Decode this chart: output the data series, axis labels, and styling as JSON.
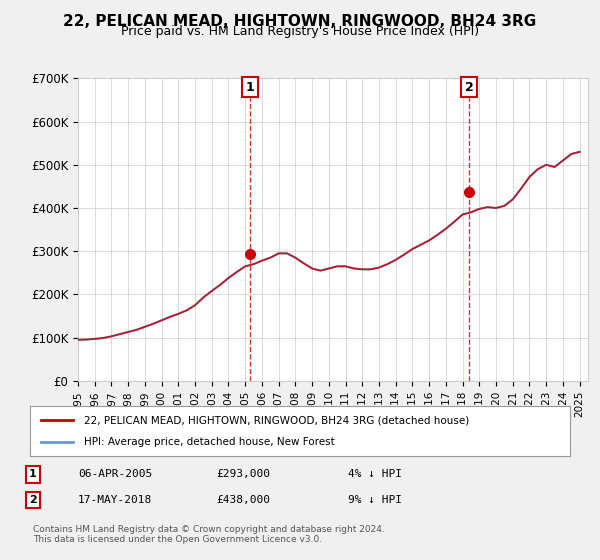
{
  "title": "22, PELICAN MEAD, HIGHTOWN, RINGWOOD, BH24 3RG",
  "subtitle": "Price paid vs. HM Land Registry's House Price Index (HPI)",
  "legend_line1": "22, PELICAN MEAD, HIGHTOWN, RINGWOOD, BH24 3RG (detached house)",
  "legend_line2": "HPI: Average price, detached house, New Forest",
  "footnote": "Contains HM Land Registry data © Crown copyright and database right 2024.\nThis data is licensed under the Open Government Licence v3.0.",
  "table_rows": [
    [
      "1",
      "06-APR-2005",
      "£293,000",
      "4% ↓ HPI"
    ],
    [
      "2",
      "17-MAY-2018",
      "£438,000",
      "9% ↓ HPI"
    ]
  ],
  "ylabel_ticks": [
    "£0",
    "£100K",
    "£200K",
    "£300K",
    "£400K",
    "£500K",
    "£600K",
    "£700K"
  ],
  "ylim": [
    0,
    700000
  ],
  "xlim_start": 1995.0,
  "xlim_end": 2025.5,
  "vline1_x": 2005.27,
  "vline2_x": 2018.38,
  "marker1_price": 293000,
  "marker2_price": 438000,
  "red_color": "#cc0000",
  "blue_color": "#6699cc",
  "vline_color": "#cc0000",
  "bg_color": "#f0f0f0",
  "plot_bg": "#ffffff",
  "hpi_years": [
    1995,
    1995.5,
    1996,
    1996.5,
    1997,
    1997.5,
    1998,
    1998.5,
    1999,
    1999.5,
    2000,
    2000.5,
    2001,
    2001.5,
    2002,
    2002.5,
    2003,
    2003.5,
    2004,
    2004.5,
    2005,
    2005.5,
    2006,
    2006.5,
    2007,
    2007.5,
    2008,
    2008.5,
    2009,
    2009.5,
    2010,
    2010.5,
    2011,
    2011.5,
    2012,
    2012.5,
    2013,
    2013.5,
    2014,
    2014.5,
    2015,
    2015.5,
    2016,
    2016.5,
    2017,
    2017.5,
    2018,
    2018.5,
    2019,
    2019.5,
    2020,
    2020.5,
    2021,
    2021.5,
    2022,
    2022.5,
    2023,
    2023.5,
    2024,
    2024.5,
    2025
  ],
  "hpi_values": [
    95000,
    95500,
    97000,
    99000,
    103000,
    108000,
    113000,
    118000,
    125000,
    132000,
    140000,
    148000,
    155000,
    163000,
    175000,
    193000,
    208000,
    222000,
    238000,
    252000,
    265000,
    270000,
    278000,
    285000,
    295000,
    295000,
    285000,
    272000,
    260000,
    255000,
    260000,
    265000,
    265000,
    260000,
    258000,
    258000,
    262000,
    270000,
    280000,
    292000,
    305000,
    315000,
    325000,
    338000,
    352000,
    368000,
    385000,
    390000,
    398000,
    402000,
    400000,
    405000,
    420000,
    445000,
    472000,
    490000,
    500000,
    495000,
    510000,
    525000,
    530000
  ],
  "sale_years": [
    2005.27,
    2018.38
  ],
  "sale_prices": [
    293000,
    438000
  ]
}
